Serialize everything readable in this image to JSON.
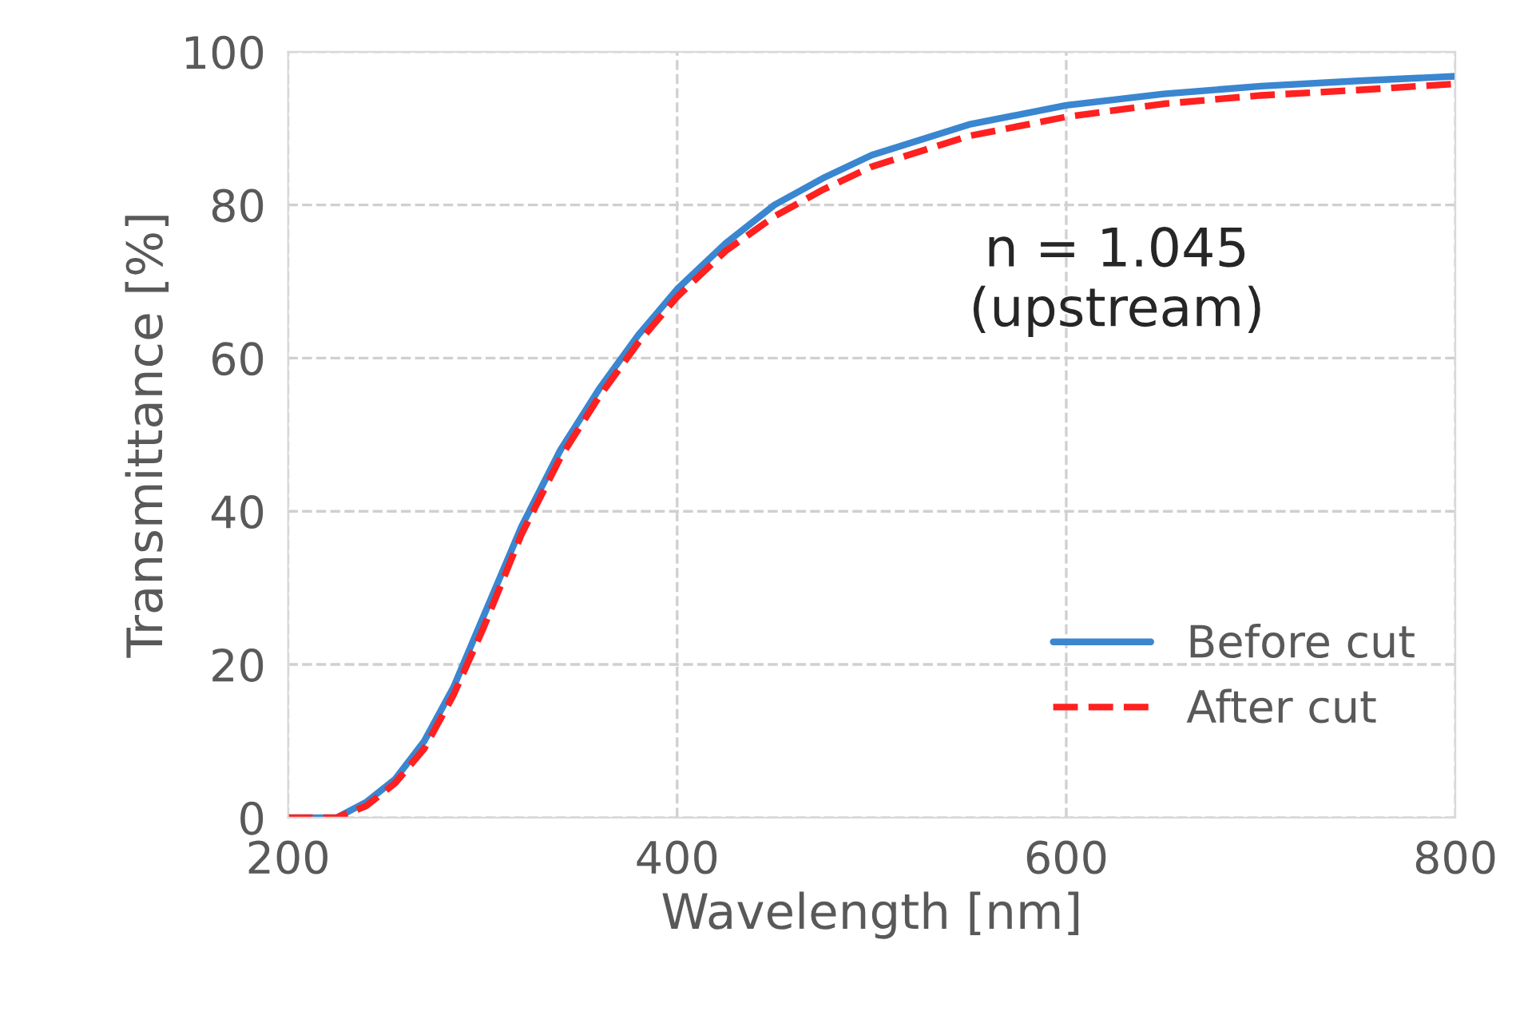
{
  "chart_data": {
    "type": "line",
    "xlabel": "Wavelength [nm]",
    "ylabel": "Transmittance [%]",
    "xlim": [
      200,
      800
    ],
    "ylim": [
      0,
      100
    ],
    "xticks": [
      200,
      400,
      600,
      800
    ],
    "yticks": [
      0,
      20,
      40,
      60,
      80,
      100
    ],
    "grid": true,
    "legend": "bottom right",
    "annotations": [
      "n = 1.045\n(upstream)"
    ],
    "series": [
      {
        "name": "Before cut",
        "color": "#3a86d0",
        "line_style": "solid",
        "x": [
          200,
          225,
          240,
          255,
          270,
          285,
          300,
          320,
          340,
          360,
          380,
          400,
          425,
          450,
          475,
          500,
          550,
          600,
          650,
          700,
          750,
          800
        ],
        "values": [
          0,
          0,
          2,
          5,
          10,
          17,
          26,
          38,
          48,
          56,
          63,
          69,
          75,
          80,
          83.5,
          86.5,
          90.5,
          93,
          94.5,
          95.5,
          96.2,
          96.8
        ]
      },
      {
        "name": "After cut",
        "color": "#ff2020",
        "line_style": "dashed",
        "x": [
          200,
          225,
          240,
          255,
          270,
          285,
          300,
          320,
          340,
          360,
          380,
          400,
          425,
          450,
          475,
          500,
          550,
          600,
          650,
          700,
          750,
          800
        ],
        "values": [
          0,
          0,
          1.5,
          4.5,
          9,
          16,
          24.5,
          37,
          47,
          55,
          62,
          68,
          74,
          78.5,
          82,
          85,
          89,
          91.5,
          93.2,
          94.3,
          95,
          95.8
        ]
      }
    ]
  }
}
